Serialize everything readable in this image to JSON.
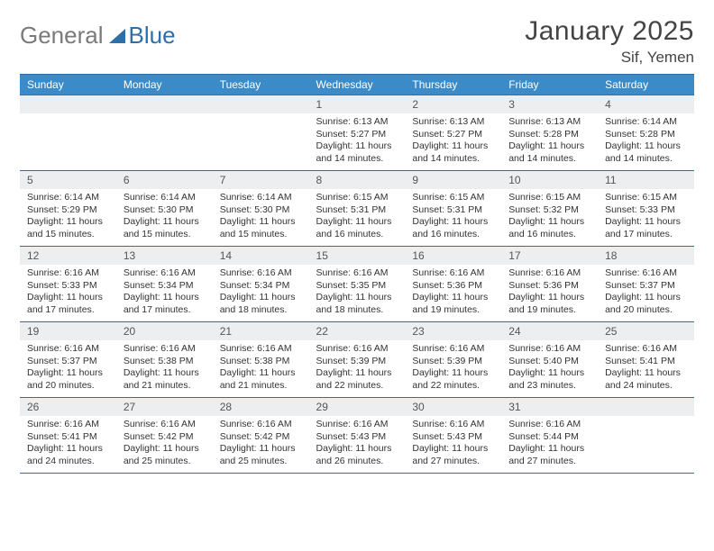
{
  "logo": {
    "text1": "General",
    "text2": "Blue",
    "sail_color": "#2f6fa8"
  },
  "title": {
    "month": "January 2025",
    "location": "Sif, Yemen"
  },
  "calendar": {
    "day_headers": [
      "Sunday",
      "Monday",
      "Tuesday",
      "Wednesday",
      "Thursday",
      "Friday",
      "Saturday"
    ],
    "header_bg": "#3b8bc9",
    "header_fg": "#ffffff",
    "border_color": "#2f6fa8",
    "daynum_bg": "#eceef0",
    "weeks": [
      [
        null,
        null,
        null,
        {
          "n": "1",
          "sunrise": "6:13 AM",
          "sunset": "5:27 PM",
          "day_h": "11",
          "day_m": "14"
        },
        {
          "n": "2",
          "sunrise": "6:13 AM",
          "sunset": "5:27 PM",
          "day_h": "11",
          "day_m": "14"
        },
        {
          "n": "3",
          "sunrise": "6:13 AM",
          "sunset": "5:28 PM",
          "day_h": "11",
          "day_m": "14"
        },
        {
          "n": "4",
          "sunrise": "6:14 AM",
          "sunset": "5:28 PM",
          "day_h": "11",
          "day_m": "14"
        }
      ],
      [
        {
          "n": "5",
          "sunrise": "6:14 AM",
          "sunset": "5:29 PM",
          "day_h": "11",
          "day_m": "15"
        },
        {
          "n": "6",
          "sunrise": "6:14 AM",
          "sunset": "5:30 PM",
          "day_h": "11",
          "day_m": "15"
        },
        {
          "n": "7",
          "sunrise": "6:14 AM",
          "sunset": "5:30 PM",
          "day_h": "11",
          "day_m": "15"
        },
        {
          "n": "8",
          "sunrise": "6:15 AM",
          "sunset": "5:31 PM",
          "day_h": "11",
          "day_m": "16"
        },
        {
          "n": "9",
          "sunrise": "6:15 AM",
          "sunset": "5:31 PM",
          "day_h": "11",
          "day_m": "16"
        },
        {
          "n": "10",
          "sunrise": "6:15 AM",
          "sunset": "5:32 PM",
          "day_h": "11",
          "day_m": "16"
        },
        {
          "n": "11",
          "sunrise": "6:15 AM",
          "sunset": "5:33 PM",
          "day_h": "11",
          "day_m": "17"
        }
      ],
      [
        {
          "n": "12",
          "sunrise": "6:16 AM",
          "sunset": "5:33 PM",
          "day_h": "11",
          "day_m": "17"
        },
        {
          "n": "13",
          "sunrise": "6:16 AM",
          "sunset": "5:34 PM",
          "day_h": "11",
          "day_m": "17"
        },
        {
          "n": "14",
          "sunrise": "6:16 AM",
          "sunset": "5:34 PM",
          "day_h": "11",
          "day_m": "18"
        },
        {
          "n": "15",
          "sunrise": "6:16 AM",
          "sunset": "5:35 PM",
          "day_h": "11",
          "day_m": "18"
        },
        {
          "n": "16",
          "sunrise": "6:16 AM",
          "sunset": "5:36 PM",
          "day_h": "11",
          "day_m": "19"
        },
        {
          "n": "17",
          "sunrise": "6:16 AM",
          "sunset": "5:36 PM",
          "day_h": "11",
          "day_m": "19"
        },
        {
          "n": "18",
          "sunrise": "6:16 AM",
          "sunset": "5:37 PM",
          "day_h": "11",
          "day_m": "20"
        }
      ],
      [
        {
          "n": "19",
          "sunrise": "6:16 AM",
          "sunset": "5:37 PM",
          "day_h": "11",
          "day_m": "20"
        },
        {
          "n": "20",
          "sunrise": "6:16 AM",
          "sunset": "5:38 PM",
          "day_h": "11",
          "day_m": "21"
        },
        {
          "n": "21",
          "sunrise": "6:16 AM",
          "sunset": "5:38 PM",
          "day_h": "11",
          "day_m": "21"
        },
        {
          "n": "22",
          "sunrise": "6:16 AM",
          "sunset": "5:39 PM",
          "day_h": "11",
          "day_m": "22"
        },
        {
          "n": "23",
          "sunrise": "6:16 AM",
          "sunset": "5:39 PM",
          "day_h": "11",
          "day_m": "22"
        },
        {
          "n": "24",
          "sunrise": "6:16 AM",
          "sunset": "5:40 PM",
          "day_h": "11",
          "day_m": "23"
        },
        {
          "n": "25",
          "sunrise": "6:16 AM",
          "sunset": "5:41 PM",
          "day_h": "11",
          "day_m": "24"
        }
      ],
      [
        {
          "n": "26",
          "sunrise": "6:16 AM",
          "sunset": "5:41 PM",
          "day_h": "11",
          "day_m": "24"
        },
        {
          "n": "27",
          "sunrise": "6:16 AM",
          "sunset": "5:42 PM",
          "day_h": "11",
          "day_m": "25"
        },
        {
          "n": "28",
          "sunrise": "6:16 AM",
          "sunset": "5:42 PM",
          "day_h": "11",
          "day_m": "25"
        },
        {
          "n": "29",
          "sunrise": "6:16 AM",
          "sunset": "5:43 PM",
          "day_h": "11",
          "day_m": "26"
        },
        {
          "n": "30",
          "sunrise": "6:16 AM",
          "sunset": "5:43 PM",
          "day_h": "11",
          "day_m": "27"
        },
        {
          "n": "31",
          "sunrise": "6:16 AM",
          "sunset": "5:44 PM",
          "day_h": "11",
          "day_m": "27"
        },
        null
      ]
    ],
    "labels": {
      "sunrise": "Sunrise:",
      "sunset": "Sunset:",
      "daylight": "Daylight:",
      "hours": "hours",
      "and": "and",
      "minutes": "minutes."
    }
  }
}
